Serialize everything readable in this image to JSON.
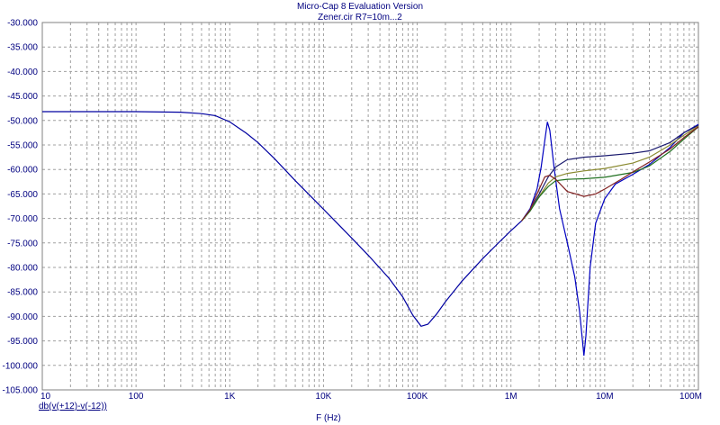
{
  "title": "Micro-Cap 8 Evaluation Version",
  "subtitle": "Zener.cir R7=10m...2",
  "trace_label": "db(v(+12)-v(-12))",
  "chart_data": {
    "type": "line",
    "title": "Micro-Cap 8 Evaluation Version",
    "subtitle": "Zener.cir R7=10m...2",
    "xlabel": "F (Hz)",
    "ylabel": "",
    "xscale": "log",
    "xlim": [
      10,
      100000000
    ],
    "ylim": [
      -105,
      -30
    ],
    "x_ticks": [
      {
        "value": 10,
        "label": "10"
      },
      {
        "value": 100,
        "label": "100"
      },
      {
        "value": 1000,
        "label": "1K"
      },
      {
        "value": 10000,
        "label": "10K"
      },
      {
        "value": 100000,
        "label": "100K"
      },
      {
        "value": 1000000,
        "label": "1M"
      },
      {
        "value": 10000000,
        "label": "10M"
      },
      {
        "value": 100000000,
        "label": "100M"
      }
    ],
    "y_ticks": [
      {
        "value": -30,
        "label": "-30.000"
      },
      {
        "value": -35,
        "label": "-35.000"
      },
      {
        "value": -40,
        "label": "-40.000"
      },
      {
        "value": -45,
        "label": "-45.000"
      },
      {
        "value": -50,
        "label": "-50.000"
      },
      {
        "value": -55,
        "label": "-55.000"
      },
      {
        "value": -60,
        "label": "-60.000"
      },
      {
        "value": -65,
        "label": "-65.000"
      },
      {
        "value": -70,
        "label": "-70.000"
      },
      {
        "value": -75,
        "label": "-75.000"
      },
      {
        "value": -80,
        "label": "-80.000"
      },
      {
        "value": -85,
        "label": "-85.000"
      },
      {
        "value": -90,
        "label": "-90.000"
      },
      {
        "value": -95,
        "label": "-95.000"
      },
      {
        "value": -100,
        "label": "-100.000"
      },
      {
        "value": -105,
        "label": "-105.000"
      }
    ],
    "grid": true,
    "colors": {
      "axis": "#000080",
      "grid": "#a0a0a0",
      "frame": "#808080"
    },
    "common_curve": [
      [
        10,
        -48.2
      ],
      [
        100,
        -48.2
      ],
      [
        300,
        -48.3
      ],
      [
        500,
        -48.6
      ],
      [
        700,
        -49.0
      ],
      [
        1000,
        -50.3
      ],
      [
        1500,
        -52.6
      ],
      [
        2000,
        -54.5
      ],
      [
        3000,
        -57.8
      ],
      [
        5000,
        -62.3
      ],
      [
        10000,
        -68.1
      ],
      [
        20000,
        -74.0
      ],
      [
        30000,
        -77.5
      ],
      [
        50000,
        -82.2
      ],
      [
        70000,
        -86.0
      ],
      [
        90000,
        -89.8
      ],
      [
        110000,
        -92.0
      ],
      [
        130000,
        -91.6
      ],
      [
        160000,
        -89.6
      ],
      [
        200000,
        -87.0
      ],
      [
        300000,
        -82.8
      ],
      [
        500000,
        -78.2
      ],
      [
        700000,
        -75.4
      ],
      [
        1000000,
        -72.5
      ],
      [
        1300000,
        -70.5
      ]
    ],
    "series": [
      {
        "color": "#0000c0",
        "values": [
          [
            1300000,
            -70.5
          ],
          [
            1600000,
            -68.0
          ],
          [
            1900000,
            -64.0
          ],
          [
            2100000,
            -59.5
          ],
          [
            2300000,
            -54.0
          ],
          [
            2450000,
            -50.3
          ],
          [
            2600000,
            -52.0
          ],
          [
            2900000,
            -60.0
          ],
          [
            3300000,
            -68.0
          ],
          [
            4000000,
            -75.0
          ],
          [
            4800000,
            -82.0
          ],
          [
            5400000,
            -89.0
          ],
          [
            5800000,
            -95.0
          ],
          [
            6000000,
            -98.0
          ],
          [
            6300000,
            -94.0
          ],
          [
            7000000,
            -80.0
          ],
          [
            8000000,
            -71.0
          ],
          [
            10000000,
            -66.0
          ],
          [
            13000000,
            -63.0
          ],
          [
            20000000,
            -61.0
          ],
          [
            30000000,
            -59.0
          ],
          [
            50000000,
            -55.5
          ],
          [
            70000000,
            -52.5
          ],
          [
            100000000,
            -50.8
          ]
        ]
      },
      {
        "color": "#1a1a6e",
        "values": [
          [
            1300000,
            -70.5
          ],
          [
            1600000,
            -68.3
          ],
          [
            2000000,
            -65.0
          ],
          [
            2500000,
            -61.5
          ],
          [
            3000000,
            -59.5
          ],
          [
            4000000,
            -58.0
          ],
          [
            6000000,
            -57.5
          ],
          [
            10000000,
            -57.2
          ],
          [
            20000000,
            -56.7
          ],
          [
            30000000,
            -56.2
          ],
          [
            50000000,
            -54.5
          ],
          [
            70000000,
            -52.5
          ],
          [
            100000000,
            -51.0
          ]
        ]
      },
      {
        "color": "#8a8a30",
        "values": [
          [
            1300000,
            -70.5
          ],
          [
            1600000,
            -68.4
          ],
          [
            2000000,
            -65.5
          ],
          [
            2500000,
            -62.8
          ],
          [
            3000000,
            -61.5
          ],
          [
            4000000,
            -60.8
          ],
          [
            6000000,
            -60.3
          ],
          [
            10000000,
            -59.8
          ],
          [
            20000000,
            -58.7
          ],
          [
            30000000,
            -57.5
          ],
          [
            50000000,
            -55.0
          ],
          [
            70000000,
            -53.0
          ],
          [
            100000000,
            -51.2
          ]
        ]
      },
      {
        "color": "#207020",
        "values": [
          [
            1300000,
            -70.5
          ],
          [
            1600000,
            -68.5
          ],
          [
            2000000,
            -65.6
          ],
          [
            2500000,
            -63.5
          ],
          [
            3000000,
            -62.3
          ],
          [
            4000000,
            -62.0
          ],
          [
            6000000,
            -61.9
          ],
          [
            10000000,
            -61.6
          ],
          [
            20000000,
            -60.6
          ],
          [
            30000000,
            -59.3
          ],
          [
            50000000,
            -56.3
          ],
          [
            70000000,
            -53.8
          ],
          [
            100000000,
            -51.3
          ]
        ]
      },
      {
        "color": "#802020",
        "values": [
          [
            1300000,
            -70.5
          ],
          [
            1600000,
            -68.2
          ],
          [
            2000000,
            -64.0
          ],
          [
            2300000,
            -61.5
          ],
          [
            2600000,
            -61.2
          ],
          [
            3000000,
            -62.0
          ],
          [
            4000000,
            -64.5
          ],
          [
            6000000,
            -65.5
          ],
          [
            8000000,
            -65.0
          ],
          [
            10000000,
            -64.0
          ],
          [
            15000000,
            -62.0
          ],
          [
            20000000,
            -60.5
          ],
          [
            30000000,
            -58.5
          ],
          [
            50000000,
            -55.8
          ],
          [
            70000000,
            -53.5
          ],
          [
            100000000,
            -51.3
          ]
        ]
      }
    ]
  }
}
